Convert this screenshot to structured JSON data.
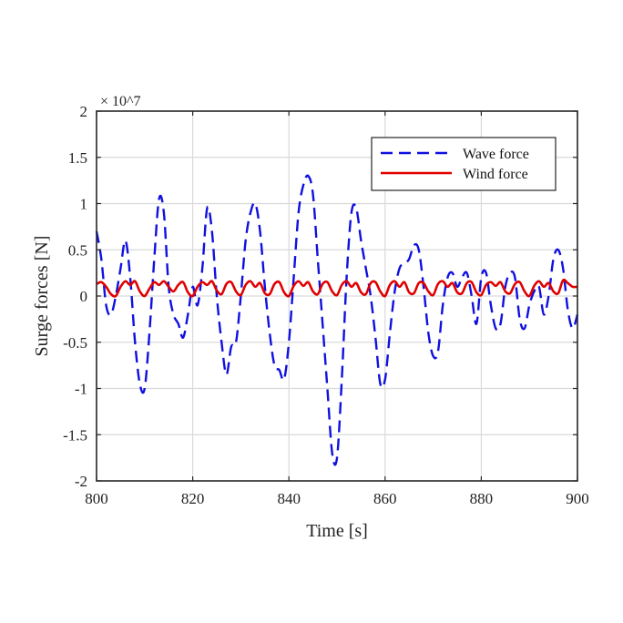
{
  "chart_data": {
    "type": "line",
    "xlabel": "Time [s]",
    "ylabel": "Surge forces [N]",
    "xlim": [
      800,
      900
    ],
    "ylim": [
      -2,
      2
    ],
    "y_multiplier_label": "× 10^7",
    "x_ticks": [
      "800",
      "820",
      "840",
      "860",
      "880",
      "900"
    ],
    "y_ticks": [
      "-2",
      "-1.5",
      "-1",
      "-0.5",
      "0",
      "0.5",
      "1",
      "1.5",
      "2"
    ],
    "grid": true,
    "legend_position": "top-right",
    "series": [
      {
        "name": "Wave force",
        "color": "#1010e0",
        "style": "dashed",
        "x": [
          800,
          801,
          802,
          803,
          804,
          805,
          806,
          807,
          808,
          809,
          810,
          811,
          812,
          813,
          814,
          815,
          816,
          817,
          818,
          819,
          820,
          821,
          822,
          823,
          824,
          825,
          826,
          827,
          828,
          829,
          830,
          831,
          832,
          833,
          834,
          835,
          836,
          837,
          838,
          839,
          840,
          841,
          842,
          843,
          844,
          845,
          846,
          847,
          848,
          849,
          850,
          851,
          852,
          853,
          854,
          855,
          856,
          857,
          858,
          859,
          860,
          861,
          862,
          863,
          864,
          865,
          866,
          867,
          868,
          869,
          870,
          871,
          872,
          873,
          874,
          875,
          876,
          877,
          878,
          879,
          880,
          881,
          882,
          883,
          884,
          885,
          886,
          887,
          888,
          889,
          890,
          891,
          892,
          893,
          894,
          895,
          896,
          897,
          898,
          899,
          900
        ],
        "y": [
          0.7,
          0.4,
          -0.1,
          -0.2,
          0.0,
          0.3,
          0.6,
          0.2,
          -0.5,
          -0.95,
          -1.0,
          -0.4,
          0.4,
          1.05,
          0.9,
          0.1,
          -0.2,
          -0.3,
          -0.45,
          -0.2,
          0.1,
          -0.1,
          0.3,
          0.95,
          0.7,
          0.0,
          -0.5,
          -0.85,
          -0.55,
          -0.5,
          0.0,
          0.6,
          0.9,
          1.0,
          0.7,
          0.1,
          -0.4,
          -0.75,
          -0.8,
          -0.9,
          -0.5,
          0.2,
          0.9,
          1.2,
          1.3,
          1.1,
          0.4,
          -0.3,
          -1.0,
          -1.7,
          -1.75,
          -0.9,
          0.2,
          0.9,
          0.95,
          0.6,
          0.3,
          0.0,
          -0.45,
          -0.95,
          -0.9,
          -0.4,
          0.05,
          0.3,
          0.35,
          0.4,
          0.55,
          0.5,
          0.1,
          -0.4,
          -0.65,
          -0.6,
          -0.1,
          0.2,
          0.25,
          0.1,
          0.2,
          0.25,
          0.0,
          -0.3,
          0.2,
          0.25,
          -0.1,
          -0.35,
          -0.3,
          0.1,
          0.25,
          0.2,
          -0.25,
          -0.35,
          -0.1,
          0.05,
          0.1,
          -0.2,
          0.0,
          0.4,
          0.5,
          0.3,
          -0.15,
          -0.35,
          -0.2
        ]
      },
      {
        "name": "Wind force",
        "color": "#e00000",
        "style": "solid",
        "x": [
          800,
          801,
          802,
          803,
          804,
          805,
          806,
          807,
          808,
          809,
          810,
          811,
          812,
          813,
          814,
          815,
          816,
          817,
          818,
          819,
          820,
          821,
          822,
          823,
          824,
          825,
          826,
          827,
          828,
          829,
          830,
          831,
          832,
          833,
          834,
          835,
          836,
          837,
          838,
          839,
          840,
          841,
          842,
          843,
          844,
          845,
          846,
          847,
          848,
          849,
          850,
          851,
          852,
          853,
          854,
          855,
          856,
          857,
          858,
          859,
          860,
          861,
          862,
          863,
          864,
          865,
          866,
          867,
          868,
          869,
          870,
          871,
          872,
          873,
          874,
          875,
          876,
          877,
          878,
          879,
          880,
          881,
          882,
          883,
          884,
          885,
          886,
          887,
          888,
          889,
          890,
          891,
          892,
          893,
          894,
          895,
          896,
          897,
          898,
          899,
          900
        ],
        "y": [
          0.13,
          0.15,
          0.1,
          0.02,
          0.0,
          0.1,
          0.16,
          0.12,
          0.16,
          0.05,
          0.0,
          0.08,
          0.15,
          0.12,
          0.16,
          0.1,
          0.05,
          0.12,
          0.15,
          0.04,
          0.0,
          0.1,
          0.15,
          0.12,
          0.16,
          0.06,
          0.02,
          0.13,
          0.15,
          0.05,
          0.01,
          0.12,
          0.16,
          0.1,
          0.14,
          0.03,
          0.02,
          0.13,
          0.15,
          0.04,
          0.0,
          0.11,
          0.16,
          0.11,
          0.15,
          0.05,
          0.02,
          0.13,
          0.15,
          0.05,
          0.01,
          0.12,
          0.16,
          0.1,
          0.14,
          0.04,
          0.02,
          0.14,
          0.15,
          0.05,
          0.0,
          0.12,
          0.16,
          0.1,
          0.15,
          0.04,
          0.03,
          0.14,
          0.14,
          0.05,
          0.01,
          0.13,
          0.16,
          0.1,
          0.14,
          0.04,
          0.03,
          0.14,
          0.15,
          0.04,
          0.01,
          0.12,
          0.15,
          0.11,
          0.15,
          0.05,
          0.03,
          0.13,
          0.15,
          0.05,
          0.0,
          0.11,
          0.16,
          0.1,
          0.14,
          0.05,
          0.03,
          0.17,
          0.14,
          0.1,
          0.1
        ]
      }
    ]
  }
}
